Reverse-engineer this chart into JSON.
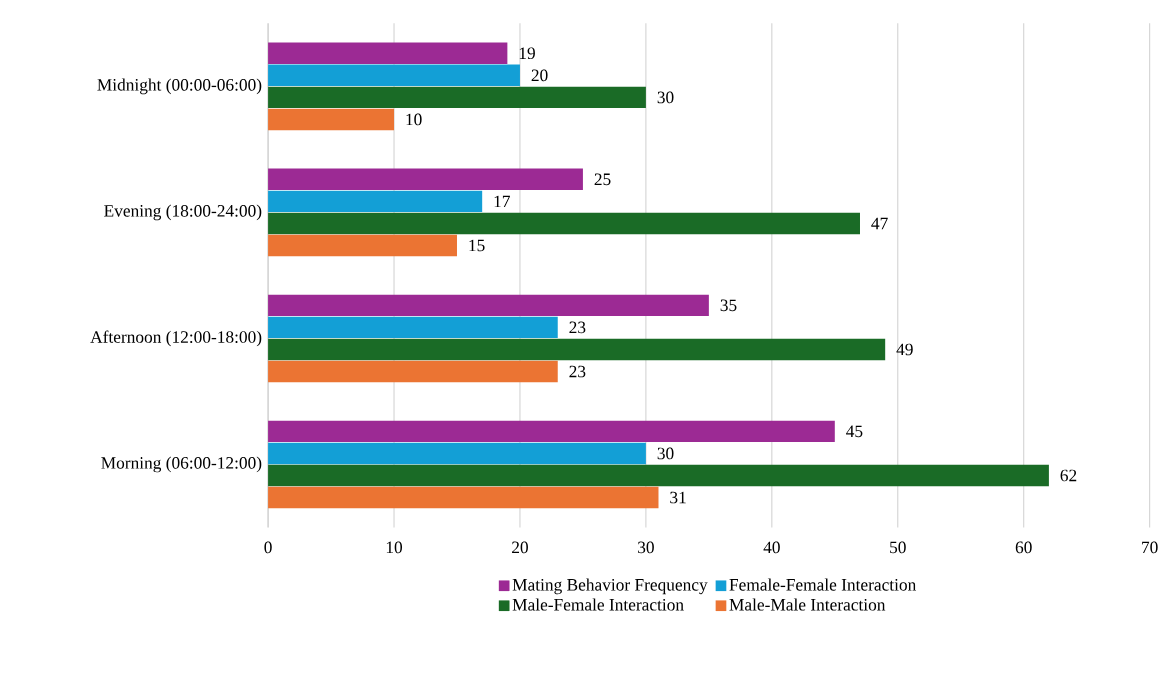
{
  "chart_data": {
    "type": "bar",
    "orientation": "horizontal",
    "categories": [
      "Midnight (00:00-06:00)",
      "Evening (18:00-24:00)",
      "Afternoon (12:00-18:00)",
      "Morning (06:00-12:00)"
    ],
    "series": [
      {
        "name": "Mating Behavior Frequency",
        "color": "#9c2a94",
        "values": [
          19,
          25,
          35,
          45
        ]
      },
      {
        "name": "Female-Female Interaction",
        "color": "#139fd6",
        "values": [
          20,
          17,
          23,
          30
        ]
      },
      {
        "name": "Male-Female Interaction",
        "color": "#1a6b26",
        "values": [
          30,
          47,
          49,
          62
        ]
      },
      {
        "name": "Male-Male Interaction",
        "color": "#eb7433",
        "values": [
          10,
          15,
          23,
          31
        ]
      }
    ],
    "xlim": [
      0,
      70
    ],
    "xticks": [
      0,
      10,
      20,
      30,
      40,
      50,
      60,
      70
    ],
    "grid": "x",
    "legend": "bottom",
    "data_labels": true
  }
}
